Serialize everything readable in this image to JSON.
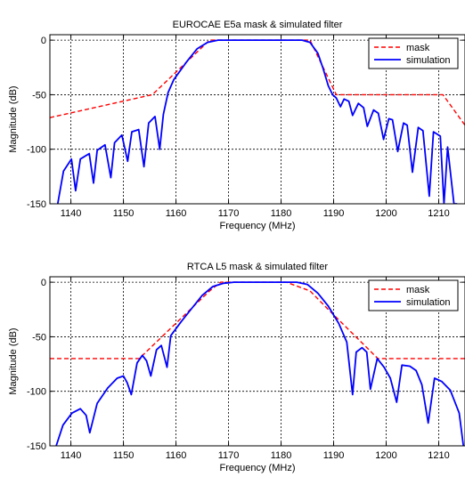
{
  "chart_data": [
    {
      "type": "line",
      "title": "EUROCAE E5a mask & simulated filter",
      "xlabel": "Frequency (MHz)",
      "ylabel": "Magnitude (dB)",
      "xlim": [
        1136,
        1215
      ],
      "ylim": [
        -150,
        5
      ],
      "xticks": [
        1140,
        1150,
        1160,
        1170,
        1180,
        1190,
        1200,
        1210
      ],
      "yticks": [
        0,
        -50,
        -100,
        -150
      ],
      "grid": true,
      "legend": "top-right",
      "series": [
        {
          "name": "mask",
          "color": "#ff0000",
          "style": "dashed",
          "x": [
            1136,
            1155.5,
            1166.4,
            1185.5,
            1190.5,
            1210.8,
            1215
          ],
          "y": [
            -71,
            -50,
            0,
            0,
            -50,
            -50,
            -78
          ]
        },
        {
          "name": "simulation",
          "color": "#0000ff",
          "style": "solid",
          "x": [
            1137.5,
            1138.6,
            1140.1,
            1140.9,
            1141.8,
            1143.5,
            1144.3,
            1145.0,
            1146.5,
            1147.6,
            1148.3,
            1149.7,
            1150.8,
            1151.6,
            1152.9,
            1153.9,
            1154.8,
            1156.0,
            1156.9,
            1157.6,
            1158.5,
            1159.6,
            1162,
            1164,
            1166,
            1168,
            1170,
            1172,
            1174,
            1176,
            1178,
            1180,
            1182,
            1184,
            1185.5,
            1187,
            1188,
            1189,
            1189.8,
            1190.5,
            1191.3,
            1192.0,
            1192.9,
            1193.6,
            1194.7,
            1195.7,
            1196.4,
            1197.6,
            1198.5,
            1199.5,
            1200.5,
            1201.2,
            1202.2,
            1203.3,
            1204.0,
            1205.0,
            1206.1,
            1207.0,
            1208.2,
            1209.0,
            1210.3,
            1211.0,
            1211.7,
            1212.9,
            1213.5
          ],
          "y": [
            -150,
            -120,
            -109,
            -138,
            -109,
            -104,
            -131,
            -101,
            -96,
            -126,
            -94,
            -87,
            -111,
            -84,
            -82,
            -116,
            -76,
            -70,
            -100,
            -68,
            -48,
            -36,
            -20,
            -8,
            -2,
            0,
            0,
            0,
            0,
            0,
            0,
            0,
            0,
            0,
            -2,
            -12,
            -26,
            -42,
            -50,
            -53,
            -61,
            -54,
            -56,
            -69,
            -58,
            -62,
            -79,
            -64,
            -67,
            -91,
            -72,
            -73,
            -102,
            -76,
            -78,
            -121,
            -80,
            -83,
            -143,
            -84,
            -88,
            -150,
            -98,
            -150,
            -150
          ]
        }
      ]
    },
    {
      "type": "line",
      "title": "RTCA L5 mask & simulated filter",
      "xlabel": "Frequency (MHz)",
      "ylabel": "Magnitude (dB)",
      "xlim": [
        1136,
        1215
      ],
      "ylim": [
        -150,
        5
      ],
      "xticks": [
        1140,
        1150,
        1160,
        1170,
        1180,
        1190,
        1200,
        1210
      ],
      "yticks": [
        0,
        -50,
        -100,
        -150
      ],
      "grid": true,
      "legend": "top-right",
      "series": [
        {
          "name": "mask",
          "color": "#ff0000",
          "style": "dashed",
          "x": [
            1136,
            1153,
            1166.4,
            1168.5,
            1181,
            1185.5,
            1189,
            1198.4,
            1215
          ],
          "y": [
            -70,
            -70,
            -8,
            0,
            0,
            -8,
            -25,
            -70,
            -70
          ]
        },
        {
          "name": "simulation",
          "color": "#0000ff",
          "style": "solid",
          "x": [
            1137.2,
            1138.5,
            1140.2,
            1141.8,
            1142.9,
            1143.6,
            1145,
            1147,
            1148.8,
            1150,
            1150.7,
            1151.5,
            1152.6,
            1153.6,
            1154.4,
            1155.2,
            1156.3,
            1157.2,
            1158.3,
            1159,
            1161,
            1163,
            1165,
            1167,
            1169,
            1171,
            1173,
            1175,
            1177,
            1179,
            1181,
            1183,
            1185,
            1187,
            1189,
            1191,
            1192.5,
            1193.6,
            1194.3,
            1195.4,
            1196.3,
            1197,
            1198.3,
            1199.6,
            1200.8,
            1202,
            1203,
            1204.5,
            1205.7,
            1206.8,
            1208,
            1209.2,
            1210.6,
            1212.2,
            1213.9,
            1214.7
          ],
          "y": [
            -150,
            -131,
            -120,
            -116,
            -122,
            -138,
            -111,
            -97,
            -88,
            -86,
            -92,
            -103,
            -74,
            -67,
            -72,
            -86,
            -62,
            -58,
            -78,
            -49,
            -36,
            -24,
            -12,
            -4,
            -1,
            0,
            0,
            0,
            0,
            0,
            0,
            0,
            -2,
            -10,
            -22,
            -38,
            -55,
            -103,
            -64,
            -60,
            -64,
            -98,
            -70,
            -78,
            -88,
            -110,
            -76,
            -77,
            -81,
            -94,
            -129,
            -88,
            -91,
            -99,
            -120,
            -150
          ]
        }
      ]
    }
  ]
}
